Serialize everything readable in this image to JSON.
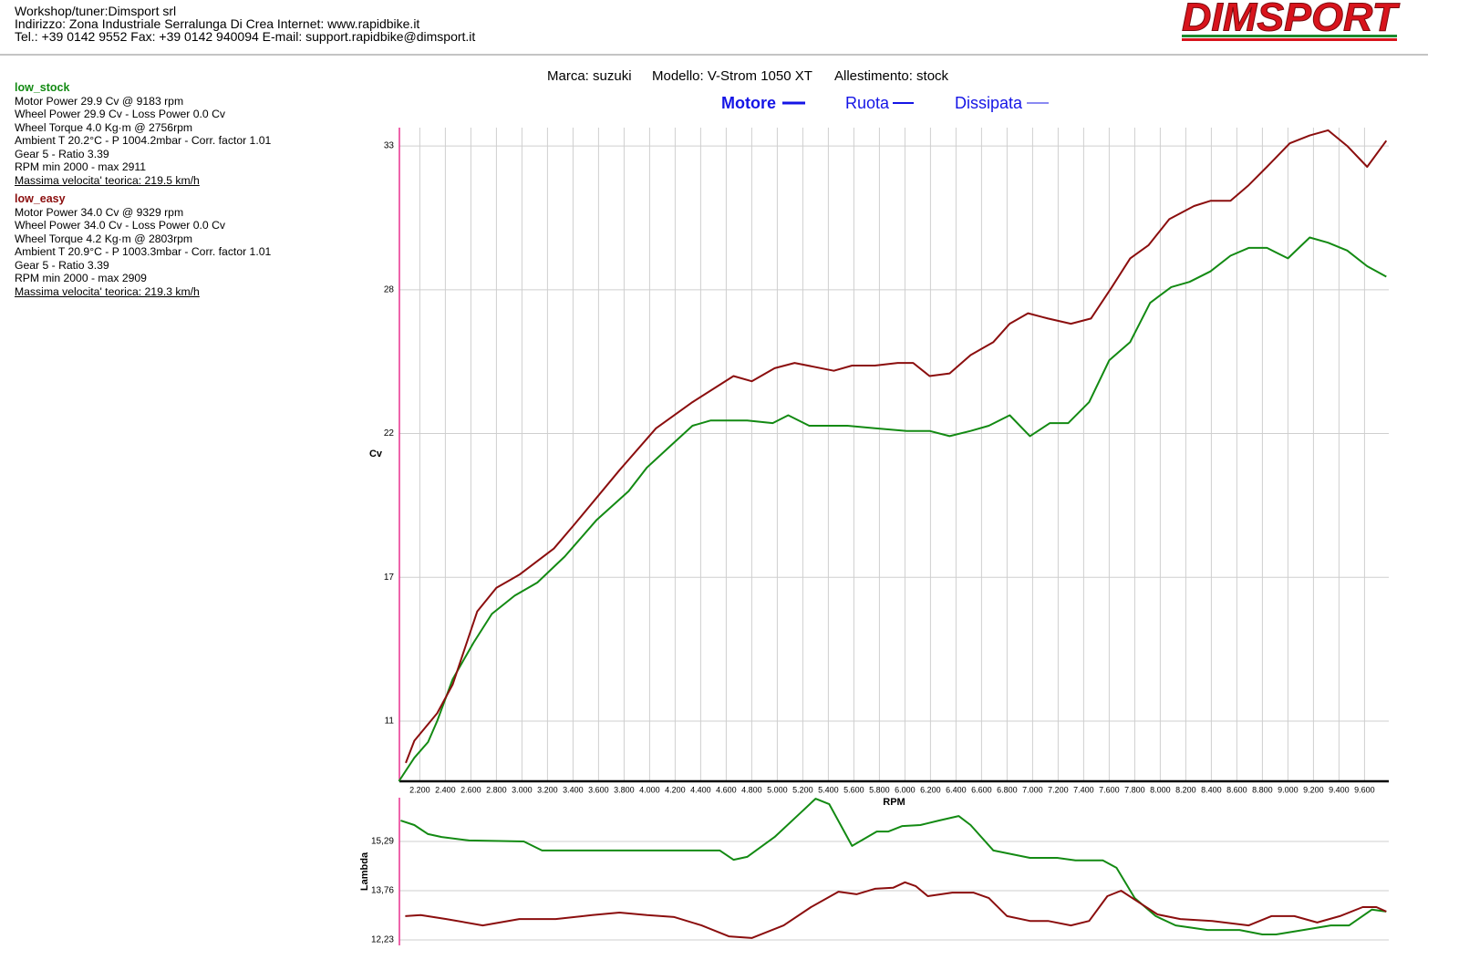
{
  "header": {
    "lines": [
      "Workshop/tuner:Dimsport srl",
      "Indirizzo: Zona Industriale Serralunga Di Crea Internet: www.rapidbike.it",
      "Tel.: +39 0142 9552 Fax: +39 0142 940094 E-mail: support.rapidbike@dimsport.it"
    ],
    "logo": "DIMSPORT"
  },
  "runs": [
    {
      "name": "low_stock",
      "color": "#138a13",
      "lines": [
        "Motor Power 29.9 Cv  @ 9183 rpm",
        "Wheel Power 29.9 Cv  - Loss Power 0.0 Cv",
        "Wheel Torque 4.0 Kg·m  @ 2756rpm",
        "Ambient T 20.2°C - P 1004.2mbar - Corr. factor 1.01",
        "Gear 5 - Ratio 3.39",
        "RPM min 2000 - max 2911"
      ],
      "top_speed": "Massima velocita' teorica: 219.5 km/h"
    },
    {
      "name": "low_easy",
      "color": "#8b0e0e",
      "lines": [
        "Motor Power 34.0 Cv  @ 9329 rpm",
        "Wheel Power 34.0 Cv  - Loss Power 0.0 Cv",
        "Wheel Torque 4.2 Kg·m  @ 2803rpm",
        "Ambient T 20.9°C - P 1003.3mbar - Corr. factor 1.01",
        "Gear 5 - Ratio 3.39",
        "RPM min 2000 - max 2909"
      ],
      "top_speed": "Massima velocita' teorica: 219.3 km/h"
    }
  ],
  "vehicle": [
    "Marca: suzuki",
    "Modello: V-Strom 1050 XT",
    "Allestimento: stock"
  ],
  "modes": [
    "Motore",
    "Ruota",
    "Dissipata"
  ],
  "chart_data": [
    {
      "type": "line",
      "xlabel": "RPM",
      "ylabel": "Cv",
      "grid": true,
      "xlim": [
        2040,
        9790
      ],
      "ylim": [
        8.7,
        33.7
      ],
      "xticks": [
        {
          "value": 2200,
          "label": "2.200"
        },
        {
          "value": 2400,
          "label": "2.400"
        },
        {
          "value": 2600,
          "label": "2.600"
        },
        {
          "value": 2800,
          "label": "2.800"
        },
        {
          "value": 3000,
          "label": "3.000"
        },
        {
          "value": 3200,
          "label": "3.200"
        },
        {
          "value": 3400,
          "label": "3.400"
        },
        {
          "value": 3600,
          "label": "3.600"
        },
        {
          "value": 3800,
          "label": "3.800"
        },
        {
          "value": 4000,
          "label": "4.000"
        },
        {
          "value": 4200,
          "label": "4.200"
        },
        {
          "value": 4400,
          "label": "4.400"
        },
        {
          "value": 4600,
          "label": "4.600"
        },
        {
          "value": 4800,
          "label": "4.800"
        },
        {
          "value": 5000,
          "label": "5.000"
        },
        {
          "value": 5200,
          "label": "5.200"
        },
        {
          "value": 5400,
          "label": "5.400"
        },
        {
          "value": 5600,
          "label": "5.600"
        },
        {
          "value": 5800,
          "label": "5.800"
        },
        {
          "value": 6000,
          "label": "6.000"
        },
        {
          "value": 6200,
          "label": "6.200"
        },
        {
          "value": 6400,
          "label": "6.400"
        },
        {
          "value": 6600,
          "label": "6.600"
        },
        {
          "value": 6800,
          "label": "6.800"
        },
        {
          "value": 7000,
          "label": "7.000"
        },
        {
          "value": 7200,
          "label": "7.200"
        },
        {
          "value": 7400,
          "label": "7.400"
        },
        {
          "value": 7600,
          "label": "7.600"
        },
        {
          "value": 7800,
          "label": "7.800"
        },
        {
          "value": 8000,
          "label": "8.000"
        },
        {
          "value": 8200,
          "label": "8.200"
        },
        {
          "value": 8400,
          "label": "8.400"
        },
        {
          "value": 8600,
          "label": "8.600"
        },
        {
          "value": 8800,
          "label": "8.800"
        },
        {
          "value": 9000,
          "label": "9.000"
        },
        {
          "value": 9200,
          "label": "9.200"
        },
        {
          "value": 9400,
          "label": "9.400"
        },
        {
          "value": 9600,
          "label": "9.600"
        }
      ],
      "yticks": [
        33,
        {
          "value": 27.5,
          "label": "28"
        },
        22,
        {
          "value": 16.5,
          "label": "17"
        },
        11
      ],
      "series": [
        {
          "color": "#138a13",
          "x": [
            2036,
            2157,
            2264,
            2336,
            2457,
            2621,
            2764,
            2943,
            3121,
            3336,
            3586,
            3836,
            3979,
            4157,
            4336,
            4479,
            4764,
            4964,
            5086,
            5250,
            5550,
            5764,
            6014,
            6193,
            6350,
            6514,
            6657,
            6821,
            6979,
            7136,
            7279,
            7443,
            7600,
            7764,
            7921,
            8086,
            8229,
            8393,
            8550,
            8693,
            8836,
            9000,
            9171,
            9314,
            9464,
            9621,
            9771
          ],
          "values": [
            8.7,
            9.6,
            10.2,
            11.0,
            12.6,
            14.0,
            15.1,
            15.8,
            16.3,
            17.3,
            18.7,
            19.8,
            20.7,
            21.5,
            22.3,
            22.5,
            22.5,
            22.4,
            22.7,
            22.3,
            22.3,
            22.2,
            22.1,
            22.1,
            21.9,
            22.1,
            22.3,
            22.7,
            21.9,
            22.4,
            22.4,
            23.2,
            24.8,
            25.5,
            27.0,
            27.6,
            27.8,
            28.2,
            28.8,
            29.1,
            29.1,
            28.7,
            29.5,
            29.3,
            29.0,
            28.4,
            28.0
          ]
        },
        {
          "color": "#8b0e0e",
          "x": [
            2090,
            2157,
            2336,
            2457,
            2650,
            2800,
            2979,
            3250,
            3407,
            3764,
            4050,
            4336,
            4657,
            4800,
            4979,
            5136,
            5443,
            5586,
            5764,
            5943,
            6064,
            6193,
            6350,
            6514,
            6693,
            6821,
            6964,
            7121,
            7300,
            7457,
            7621,
            7764,
            7907,
            8071,
            8264,
            8393,
            8550,
            8693,
            8836,
            9014,
            9171,
            9314,
            9464,
            9621,
            9771
          ],
          "values": [
            9.4,
            10.25,
            11.3,
            12.4,
            15.2,
            16.1,
            16.6,
            17.6,
            18.5,
            20.6,
            22.2,
            23.2,
            24.2,
            24.0,
            24.5,
            24.7,
            24.4,
            24.6,
            24.6,
            24.7,
            24.7,
            24.2,
            24.3,
            25.0,
            25.5,
            26.2,
            26.6,
            26.4,
            26.2,
            26.4,
            27.6,
            28.7,
            29.2,
            30.2,
            30.7,
            30.9,
            30.9,
            31.5,
            32.2,
            33.1,
            33.4,
            33.6,
            33.0,
            32.2,
            33.2
          ]
        }
      ]
    },
    {
      "type": "line",
      "ylabel": "Lambda",
      "grid": true,
      "xlim": [
        2040,
        9790
      ],
      "ylim": [
        12.06,
        16.65
      ],
      "yticks": [
        {
          "value": 15.29,
          "label": "15,29"
        },
        {
          "value": 13.76,
          "label": "13,76"
        },
        {
          "value": 12.23,
          "label": "12,23"
        }
      ],
      "series": [
        {
          "color": "#138a13",
          "x": [
            2050,
            2157,
            2264,
            2371,
            2586,
            3014,
            3157,
            3479,
            4550,
            4657,
            4764,
            4979,
            5193,
            5300,
            5407,
            5586,
            5779,
            5871,
            5979,
            6121,
            6264,
            6421,
            6514,
            6693,
            6979,
            7193,
            7336,
            7550,
            7657,
            7800,
            7964,
            8121,
            8371,
            8621,
            8800,
            8907,
            9121,
            9336,
            9479,
            9657,
            9771
          ],
          "values": [
            15.94,
            15.8,
            15.52,
            15.43,
            15.32,
            15.29,
            15.01,
            15.01,
            15.01,
            14.72,
            14.81,
            15.43,
            16.22,
            16.62,
            16.45,
            15.15,
            15.6,
            15.6,
            15.77,
            15.8,
            15.94,
            16.08,
            15.8,
            15.01,
            14.78,
            14.78,
            14.7,
            14.7,
            14.47,
            13.53,
            12.97,
            12.68,
            12.54,
            12.54,
            12.4,
            12.4,
            12.54,
            12.68,
            12.68,
            13.17,
            13.11
          ]
        },
        {
          "color": "#8b0e0e",
          "x": [
            2086,
            2207,
            2407,
            2693,
            2979,
            3264,
            3550,
            3764,
            3979,
            4193,
            4407,
            4621,
            4800,
            5050,
            5264,
            5479,
            5621,
            5764,
            5907,
            6000,
            6086,
            6179,
            6371,
            6536,
            6657,
            6800,
            6979,
            7121,
            7300,
            7443,
            7586,
            7693,
            7836,
            7979,
            8157,
            8407,
            8693,
            8871,
            9050,
            9229,
            9407,
            9586,
            9693,
            9771
          ],
          "values": [
            12.97,
            13.0,
            12.88,
            12.68,
            12.88,
            12.88,
            13.0,
            13.08,
            13.0,
            12.94,
            12.68,
            12.34,
            12.29,
            12.68,
            13.25,
            13.73,
            13.65,
            13.82,
            13.85,
            14.02,
            13.9,
            13.59,
            13.7,
            13.7,
            13.53,
            12.97,
            12.82,
            12.82,
            12.68,
            12.82,
            13.59,
            13.76,
            13.39,
            13.02,
            12.88,
            12.82,
            12.68,
            12.97,
            12.97,
            12.77,
            12.97,
            13.25,
            13.25,
            13.11
          ]
        }
      ]
    }
  ]
}
